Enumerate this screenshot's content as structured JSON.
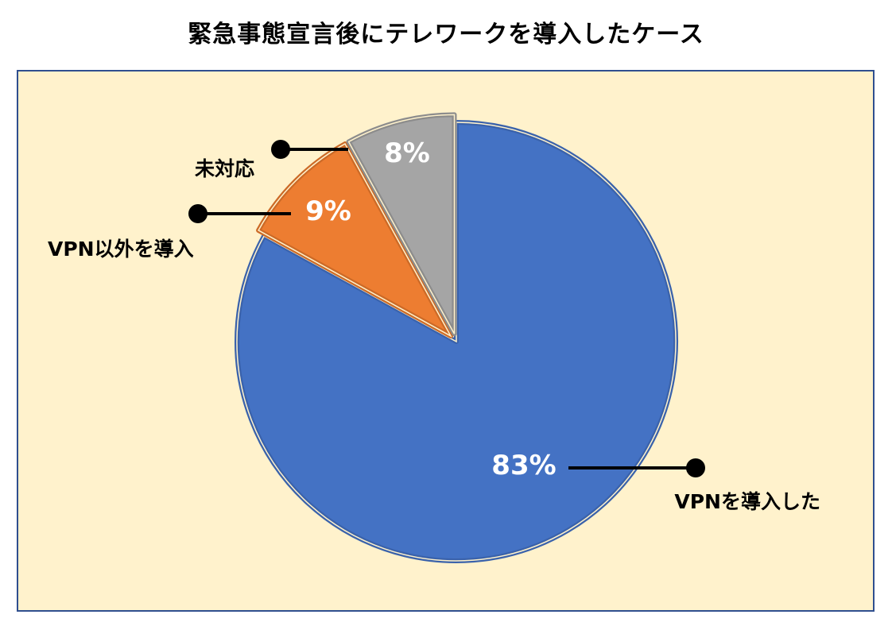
{
  "chart_data": {
    "type": "pie",
    "title": "緊急事態宣言後にテレワークを導入したケース",
    "slices": [
      {
        "label": "VPNを導入した",
        "value": 83,
        "value_label": "83%",
        "color": "#4472c4",
        "stroke": "#3a62ab",
        "exploded": false
      },
      {
        "label": "VPN以外を導入",
        "value": 9,
        "value_label": "9%",
        "color": "#ed7d31",
        "stroke": "#cc6a27",
        "exploded": true
      },
      {
        "label": "未対応",
        "value": 8,
        "value_label": "8%",
        "color": "#a5a5a5",
        "stroke": "#8c8c8c",
        "exploded": true
      }
    ],
    "background_color": "#fff2cc",
    "border_color": "#2f4f8f",
    "start_angle_deg": 0,
    "direction": "clockwise"
  }
}
